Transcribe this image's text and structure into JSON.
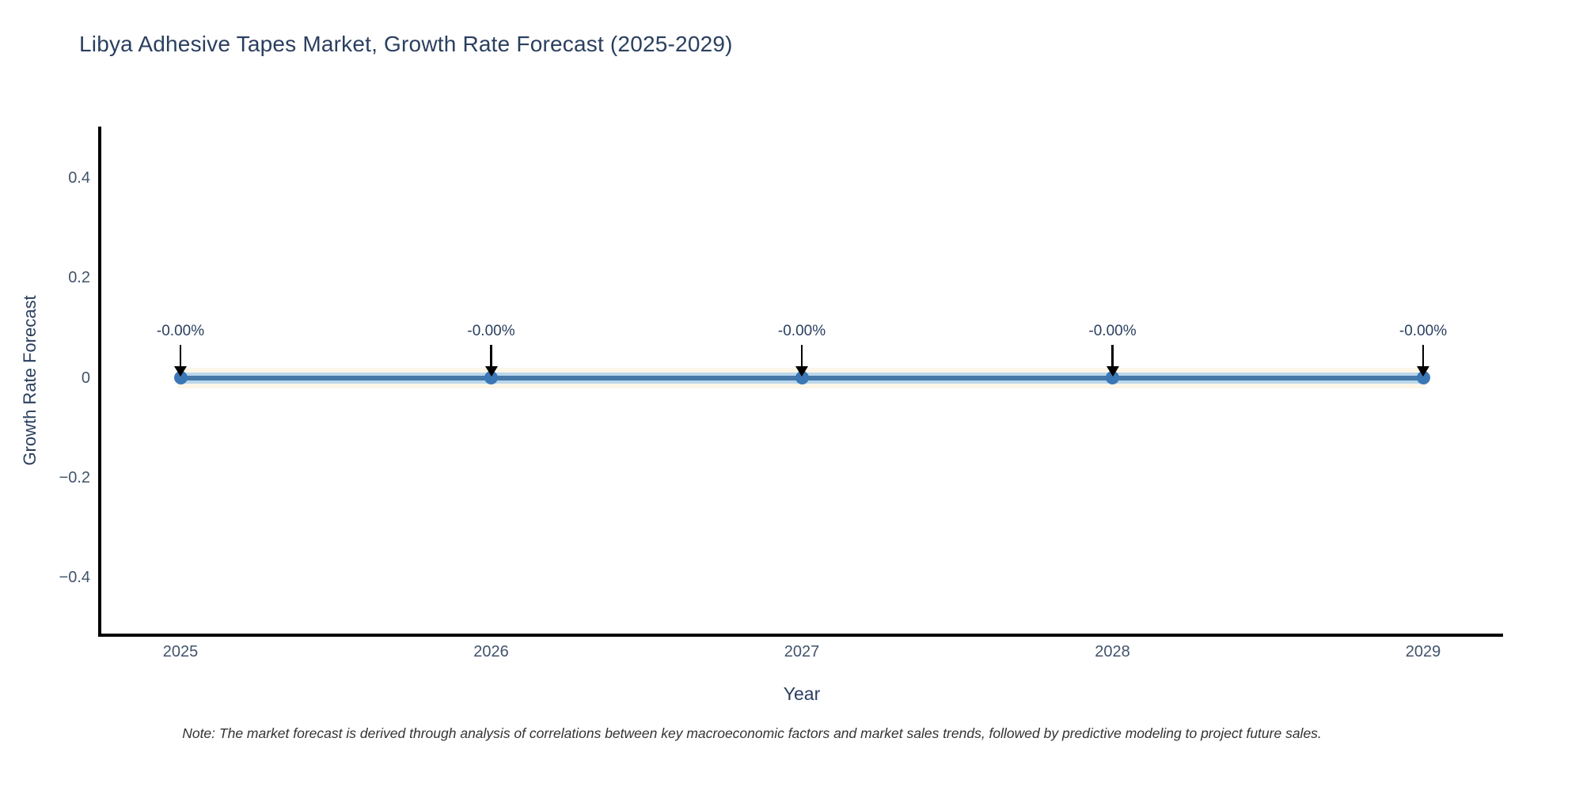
{
  "title": "Libya Adhesive Tapes Market, Growth Rate Forecast (2025-2029)",
  "note": "Note: The market forecast is derived through analysis of correlations between key macroeconomic factors and market sales trends, followed by predictive modeling to project future sales.",
  "colors": {
    "title_text": "#2a3f5f",
    "tick_text": "#42536b",
    "axis_line": "#000000",
    "line_core": "#4678a8",
    "line_mid": "#bad7ec",
    "line_glow": "#fdf6e9",
    "marker": "#3c77b5",
    "arrow": "#000000",
    "note_text": "#333333"
  },
  "chart_data": {
    "type": "line",
    "title": "Libya Adhesive Tapes Market, Growth Rate Forecast (2025-2029)",
    "xlabel": "Year",
    "ylabel": "Growth Rate Forecast",
    "x": [
      2025,
      2026,
      2027,
      2028,
      2029
    ],
    "values": [
      0,
      0,
      0,
      0,
      0
    ],
    "point_labels": [
      "-0.00%",
      "-0.00%",
      "-0.00%",
      "-0.00%",
      "-0.00%"
    ],
    "xtick_labels": [
      "2025",
      "2026",
      "2027",
      "2028",
      "2029"
    ],
    "yticks": [
      0.4,
      0.2,
      0,
      -0.2,
      -0.4
    ],
    "ytick_labels": [
      "0.4",
      "0.2",
      "0",
      "−0.2",
      "−0.4"
    ],
    "ylim": [
      -0.5,
      0.5
    ],
    "grid": false,
    "legend": false,
    "annotation_style": "down-arrow-to-point",
    "marker_style": "circle"
  }
}
